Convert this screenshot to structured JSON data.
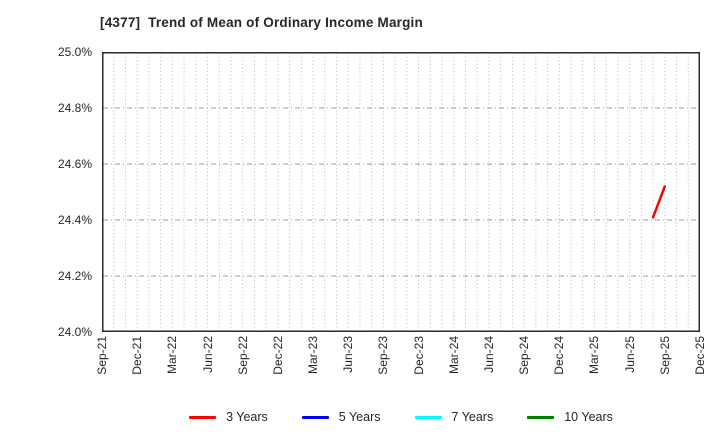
{
  "chart_data": {
    "type": "line",
    "title": "[4377]  Trend of Mean of Ordinary Income Margin",
    "x_axis": {
      "start": "Sep-21",
      "end": "Dec-25",
      "tick_labels": [
        "Sep-21",
        "Dec-21",
        "Mar-22",
        "Jun-22",
        "Sep-22",
        "Dec-22",
        "Mar-23",
        "Jun-23",
        "Sep-23",
        "Dec-23",
        "Mar-24",
        "Jun-24",
        "Sep-24",
        "Dec-24",
        "Mar-25",
        "Jun-25",
        "Sep-25",
        "Dec-25"
      ],
      "minor_grid": "monthly",
      "grid": true
    },
    "y_axis": {
      "min": 24.0,
      "max": 25.0,
      "tick_step": 0.2,
      "tick_labels": [
        "25.0%",
        "24.8%",
        "24.6%",
        "24.4%",
        "24.2%",
        "24.0%"
      ],
      "unit": "%",
      "grid": true
    },
    "series": [
      {
        "name": "3 Years",
        "color": "#ff0000",
        "points": [
          {
            "x": "Aug-25",
            "y": 24.41
          },
          {
            "x": "Sep-25",
            "y": 24.52
          }
        ]
      },
      {
        "name": "5 Years",
        "color": "#0000ff",
        "points": []
      },
      {
        "name": "7 Years",
        "color": "#00ffff",
        "points": []
      },
      {
        "name": "10 Years",
        "color": "#008000",
        "points": []
      }
    ],
    "legend_position": "bottom",
    "colors": {
      "frame": "#2b2b2b",
      "grid_vertical": "#b8b8b8",
      "grid_horizontal": "#9e9e9e",
      "text": "#262626",
      "background": "#ffffff"
    }
  }
}
